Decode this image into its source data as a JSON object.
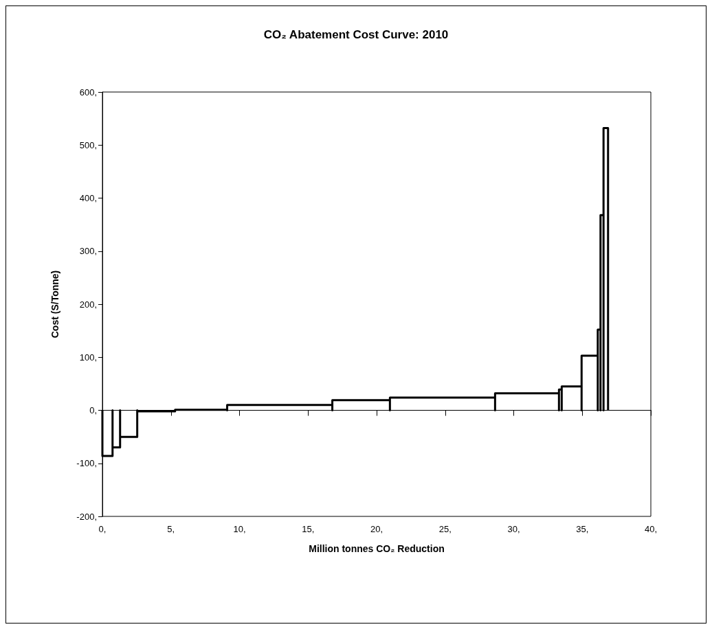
{
  "chart_data": {
    "type": "line",
    "title": "CO₂ Abatement Cost Curve: 2010",
    "xlabel": "Million tonnes CO₂ Reduction",
    "ylabel": "Cost (S/Tonne)",
    "series": [
      {
        "color": "#000000",
        "x": [
          0,
          0,
          0.74,
          0.74,
          0.74,
          0.74,
          1.29,
          1.29,
          1.29,
          1.29,
          2.54,
          2.54,
          2.54,
          2.54,
          5.3,
          5.3,
          5.3,
          5.3,
          9.1,
          9.1,
          9.1,
          9.1,
          16.77,
          16.77,
          16.77,
          16.77,
          20.97,
          20.97,
          20.97,
          20.97,
          28.64,
          28.64,
          28.64,
          28.64,
          33.3,
          33.3,
          33.3,
          33.3,
          33.5,
          33.5,
          33.5,
          33.5,
          34.95,
          34.95,
          34.95,
          34.95,
          36.13,
          36.13,
          36.13,
          36.13,
          36.33,
          36.33,
          36.33,
          36.33,
          36.55,
          36.55,
          36.55,
          36.55,
          36.88,
          36.88
        ],
        "values": [
          0,
          -86,
          -86,
          0,
          0,
          -70,
          -70,
          0,
          0,
          -50,
          -50,
          0,
          0,
          -2,
          -2,
          0,
          0,
          1,
          1,
          0,
          0,
          10,
          10,
          0,
          0,
          19,
          19,
          0,
          0,
          24,
          24,
          0,
          0,
          32,
          32,
          0,
          0,
          39,
          39,
          0,
          0,
          45,
          45,
          0,
          0,
          103,
          103,
          0,
          0,
          152,
          152,
          0,
          0,
          368,
          368,
          0,
          0,
          532,
          532,
          0
        ]
      }
    ],
    "xlim": [
      0,
      40
    ],
    "xticks": [
      {
        "value": 0,
        "label": "0,"
      },
      {
        "value": 5,
        "label": "5,"
      },
      {
        "value": 10,
        "label": "10,"
      },
      {
        "value": 15,
        "label": "15,"
      },
      {
        "value": 20,
        "label": "20,"
      },
      {
        "value": 25,
        "label": "25,"
      },
      {
        "value": 30,
        "label": "30,"
      },
      {
        "value": 35,
        "label": "35,"
      },
      {
        "value": 40,
        "label": "40,"
      }
    ],
    "ylim": [
      -200,
      600
    ],
    "yticks": [
      {
        "value": -200,
        "label": "-200,"
      },
      {
        "value": -100,
        "label": "-100,"
      },
      {
        "value": 0,
        "label": "0,"
      },
      {
        "value": 100,
        "label": "100,"
      },
      {
        "value": 200,
        "label": "200,"
      },
      {
        "value": 300,
        "label": "300,"
      },
      {
        "value": 400,
        "label": "400,"
      },
      {
        "value": 500,
        "label": "500,"
      },
      {
        "value": 600,
        "label": "600,"
      }
    ],
    "marker": "none",
    "line_style": "solid"
  }
}
